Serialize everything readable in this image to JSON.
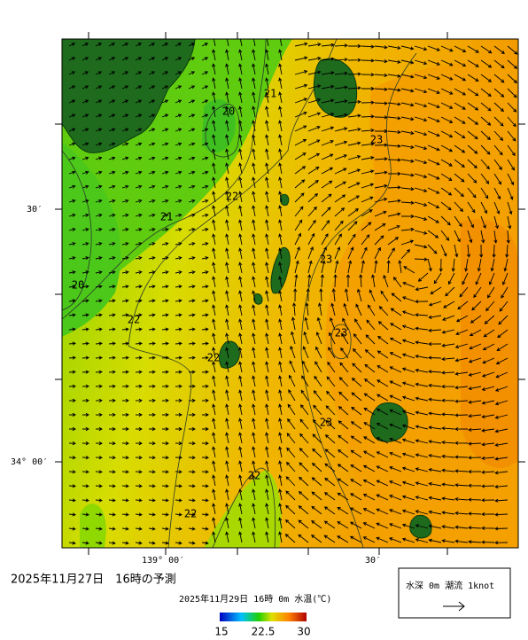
{
  "map": {
    "axis_labels": {
      "lat_30": "30′",
      "lat_34": "34° 00′",
      "lon_139": "139° 00′",
      "lon_30": "30′"
    },
    "contour_labels": [
      {
        "text": "20"
      },
      {
        "text": "21"
      },
      {
        "text": "21"
      },
      {
        "text": "22"
      },
      {
        "text": "23"
      },
      {
        "text": "23"
      },
      {
        "text": "20"
      },
      {
        "text": "22"
      },
      {
        "text": "22"
      },
      {
        "text": "23"
      },
      {
        "text": "23"
      },
      {
        "text": "22"
      },
      {
        "text": "22"
      }
    ]
  },
  "footer": {
    "forecast_title": "2025年11月27日　16時の予測",
    "colorbar_title": "2025年11月29日 16時 0m 水温(℃)",
    "colorbar_labels": [
      "15",
      "22.5",
      "30"
    ],
    "legend_text": "水深 0m 潮流 1knot"
  }
}
